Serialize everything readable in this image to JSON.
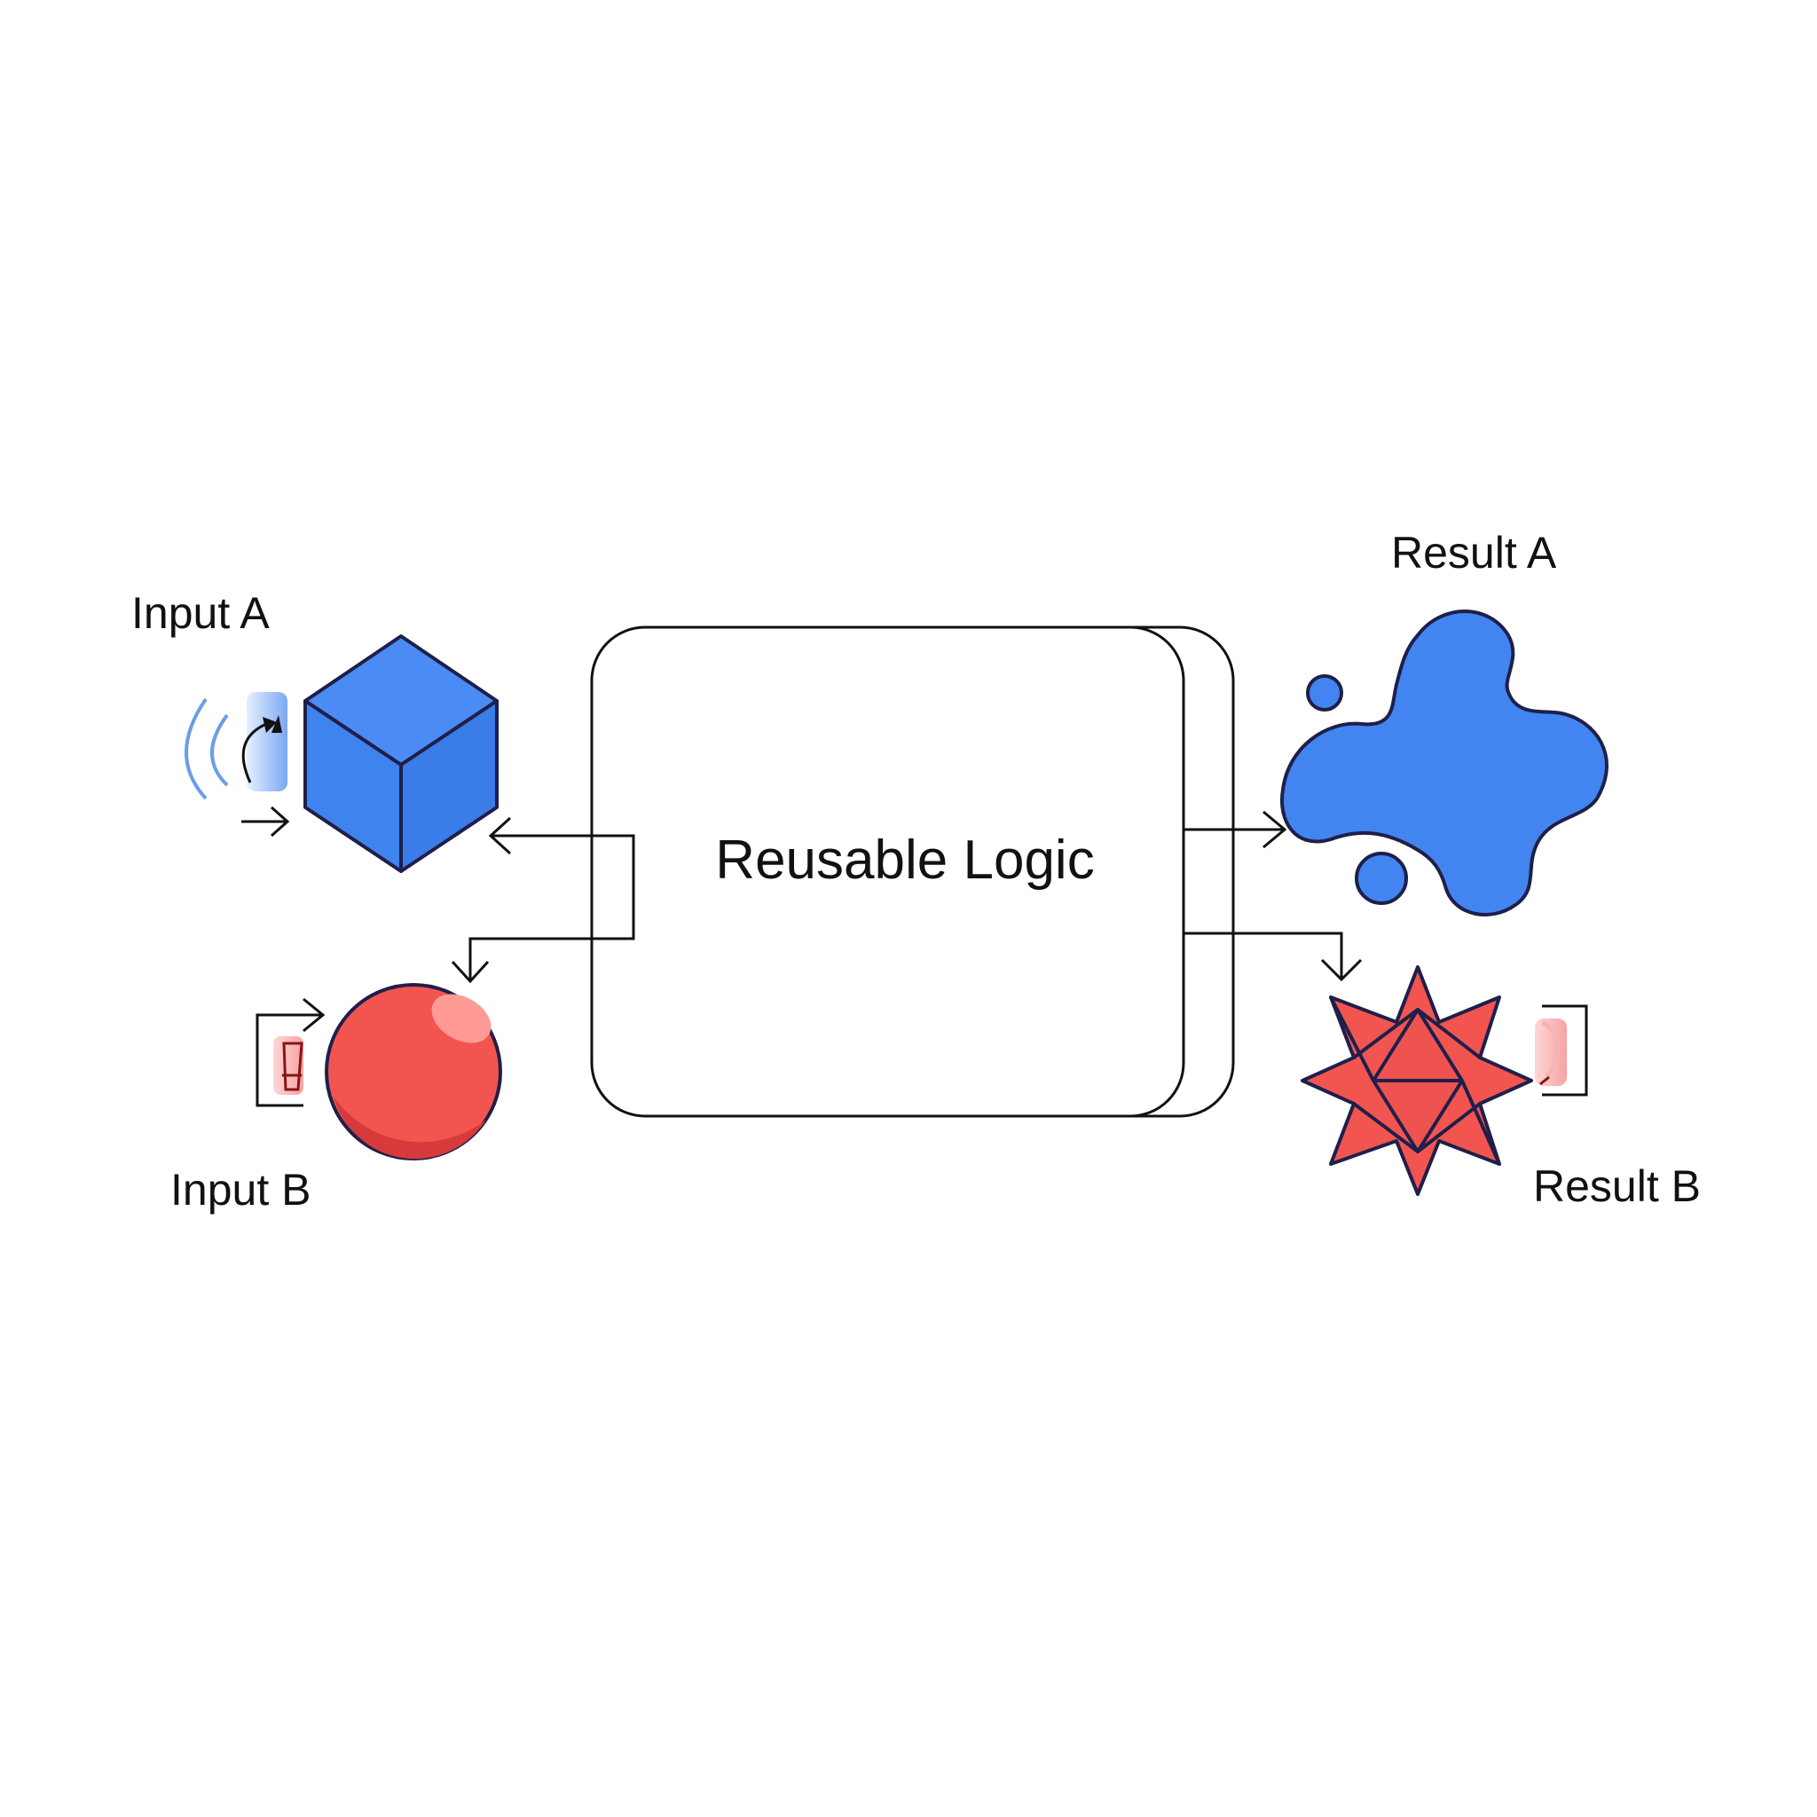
{
  "center": {
    "label": "Reusable Logic"
  },
  "inputs": [
    {
      "label": "Input A",
      "shape": "cube-icon"
    },
    {
      "label": "Input B",
      "shape": "sphere-icon"
    }
  ],
  "results": [
    {
      "label": "Result A",
      "shape": "blob-icon"
    },
    {
      "label": "Result B",
      "shape": "star-polyhedron-icon"
    }
  ],
  "colors": {
    "blue": "#4285F0",
    "red": "#F25550",
    "outline": "#1F1F4A",
    "line": "#111111"
  }
}
